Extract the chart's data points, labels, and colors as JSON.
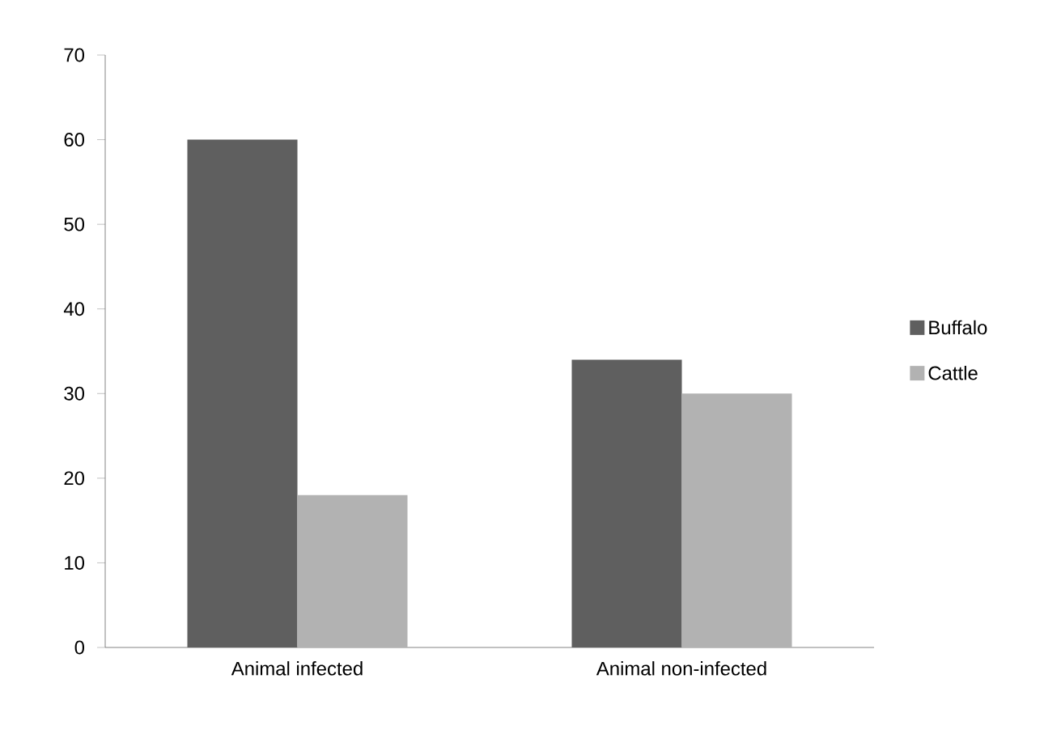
{
  "chart_data": {
    "type": "bar",
    "categories": [
      "Animal infected",
      "Animal non-infected"
    ],
    "series": [
      {
        "name": "Buffalo",
        "color": "#5f5f5f",
        "values": [
          60,
          34
        ]
      },
      {
        "name": "Cattle",
        "color": "#b2b2b2",
        "values": [
          18,
          30
        ]
      }
    ],
    "ylim": [
      0,
      70
    ],
    "yticks": [
      0,
      10,
      20,
      30,
      40,
      50,
      60,
      70
    ],
    "grid": false,
    "legend": "right"
  }
}
